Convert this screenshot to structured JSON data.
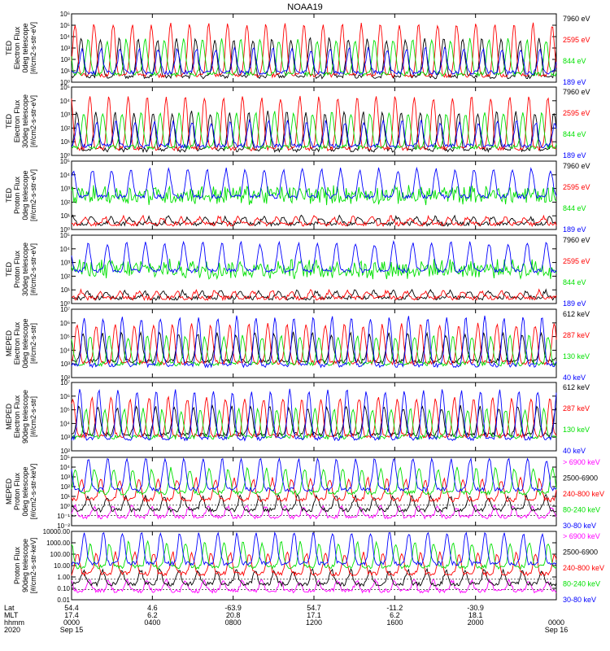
{
  "title": "NOAA19",
  "colors": {
    "black": "#000000",
    "red": "#ff0000",
    "green": "#00e000",
    "blue": "#0000ff",
    "magenta": "#ff00ff",
    "dashed": "#000000"
  },
  "chart_data": [
    {
      "type": "line",
      "ylabel": [
        "TED",
        "Electron Flux",
        "0deg telescope",
        "[#/cm2-s-str-eV]"
      ],
      "yscale": "log",
      "ylim": [
        1,
        1000000
      ],
      "ticks": [
        "10⁰",
        "10¹",
        "10²",
        "10³",
        "10⁴",
        "10⁵",
        "10⁶"
      ],
      "series": [
        {
          "name": "7960 eV",
          "color": "black"
        },
        {
          "name": "2595 eV",
          "color": "red"
        },
        {
          "name": "844 eV",
          "color": "green"
        },
        {
          "name": "189 eV",
          "color": "blue"
        }
      ]
    },
    {
      "type": "line",
      "ylabel": [
        "TED",
        "Electron Flux",
        "30deg telescope",
        "[#/cm2-s-str-eV]"
      ],
      "yscale": "log",
      "ylim": [
        1,
        100000
      ],
      "ticks": [
        "10⁰",
        "10¹",
        "10²",
        "10³",
        "10⁴",
        "10⁵"
      ],
      "series": [
        {
          "name": "7960 eV",
          "color": "black"
        },
        {
          "name": "2595 eV",
          "color": "red"
        },
        {
          "name": "844 eV",
          "color": "green"
        },
        {
          "name": "189 eV",
          "color": "blue"
        }
      ]
    },
    {
      "type": "line",
      "ylabel": [
        "TED",
        "Proton Flux",
        "0deg telescope",
        "[#/cm2-s-str-eV]"
      ],
      "yscale": "log",
      "ylim": [
        1,
        100000
      ],
      "ticks": [
        "10⁰",
        "10¹",
        "10²",
        "10³",
        "10⁴",
        "10⁵"
      ],
      "series": [
        {
          "name": "7960 eV",
          "color": "black"
        },
        {
          "name": "2595 eV",
          "color": "red"
        },
        {
          "name": "844 eV",
          "color": "green"
        },
        {
          "name": "189 eV",
          "color": "blue"
        }
      ]
    },
    {
      "type": "line",
      "ylabel": [
        "TED",
        "Proton Flux",
        "30deg telescope",
        "[#/cm2-s-str-eV]"
      ],
      "yscale": "log",
      "ylim": [
        1,
        100000
      ],
      "ticks": [
        "10⁰",
        "10¹",
        "10²",
        "10³",
        "10⁴",
        "10⁵"
      ],
      "series": [
        {
          "name": "7960 eV",
          "color": "black"
        },
        {
          "name": "2595 eV",
          "color": "red"
        },
        {
          "name": "844 eV",
          "color": "green"
        },
        {
          "name": "189 eV",
          "color": "blue"
        }
      ]
    },
    {
      "type": "line",
      "ylabel": [
        "MEPED",
        "Electron Flux",
        "0deg telescope",
        "[#/cm2-s-str]"
      ],
      "yscale": "log",
      "ylim": [
        100,
        10000000
      ],
      "ticks": [
        "10²",
        "10³",
        "10⁴",
        "10⁵",
        "10⁶",
        "10⁷"
      ],
      "series": [
        {
          "name": "612 keV",
          "color": "black"
        },
        {
          "name": "287 keV",
          "color": "red"
        },
        {
          "name": "130 keV",
          "color": "green"
        },
        {
          "name": "40 keV",
          "color": "blue"
        }
      ]
    },
    {
      "type": "line",
      "ylabel": [
        "MEPED",
        "Electron Flux",
        "90deg telescope",
        "[#/cm2-s-str]"
      ],
      "yscale": "log",
      "ylim": [
        100,
        10000000
      ],
      "ticks": [
        "10²",
        "10³",
        "10⁴",
        "10⁵",
        "10⁶",
        "10⁷"
      ],
      "series": [
        {
          "name": "612 keV",
          "color": "black"
        },
        {
          "name": "287 keV",
          "color": "red"
        },
        {
          "name": "130 keV",
          "color": "green"
        },
        {
          "name": "40 keV",
          "color": "blue"
        }
      ]
    },
    {
      "type": "line",
      "ylabel": [
        "MEPED",
        "Proton Flux",
        "0deg telescope",
        "[#/cm2-s-str-keV]"
      ],
      "yscale": "log",
      "ylim": [
        0.01,
        100000
      ],
      "ticks": [
        "10⁻²",
        "10⁻¹",
        "10⁰",
        "10¹",
        "10²",
        "10³",
        "10⁴",
        "10⁵"
      ],
      "series": [
        {
          "name": "> 6900 keV",
          "color": "magenta"
        },
        {
          "name": "2500-6900",
          "color": "black"
        },
        {
          "name": "240-800 keV",
          "color": "red"
        },
        {
          "name": "80-240 keV",
          "color": "green"
        },
        {
          "name": "30-80 keV",
          "color": "blue"
        }
      ]
    },
    {
      "type": "line",
      "ylabel": [
        "Proton Flux",
        "90deg telescope",
        "[#/cm2-s-str-keV]"
      ],
      "yscale": "log",
      "ylim": [
        0.01,
        10000
      ],
      "ticks": [
        "0.01",
        "0.10",
        "1.00",
        "10.00",
        "100.00",
        "1000.00",
        "10000.00"
      ],
      "series": [
        {
          "name": "> 6900 keV",
          "color": "magenta"
        },
        {
          "name": "2500-6900",
          "color": "black"
        },
        {
          "name": "240-800 keV",
          "color": "red"
        },
        {
          "name": "80-240 keV",
          "color": "green"
        },
        {
          "name": "30-80 keV",
          "color": "blue"
        }
      ]
    }
  ],
  "footer": {
    "row_labels": [
      "Lat",
      "MLT",
      "hhmm",
      "2020"
    ],
    "columns": [
      {
        "lat": "54.4",
        "mlt": "17.4",
        "hhmm": "0000",
        "date": "Sep 15"
      },
      {
        "lat": "4.6",
        "mlt": "6.2",
        "hhmm": "0400",
        "date": ""
      },
      {
        "lat": "-63.9",
        "mlt": "20.8",
        "hhmm": "0800",
        "date": ""
      },
      {
        "lat": "54.7",
        "mlt": "17.1",
        "hhmm": "1200",
        "date": ""
      },
      {
        "lat": "-11.2",
        "mlt": "6.2",
        "hhmm": "1600",
        "date": ""
      },
      {
        "lat": "-30.9",
        "mlt": "18.1",
        "hhmm": "2000",
        "date": ""
      },
      {
        "lat": "",
        "mlt": "",
        "hhmm": "0000",
        "date": "Sep 16"
      }
    ]
  }
}
